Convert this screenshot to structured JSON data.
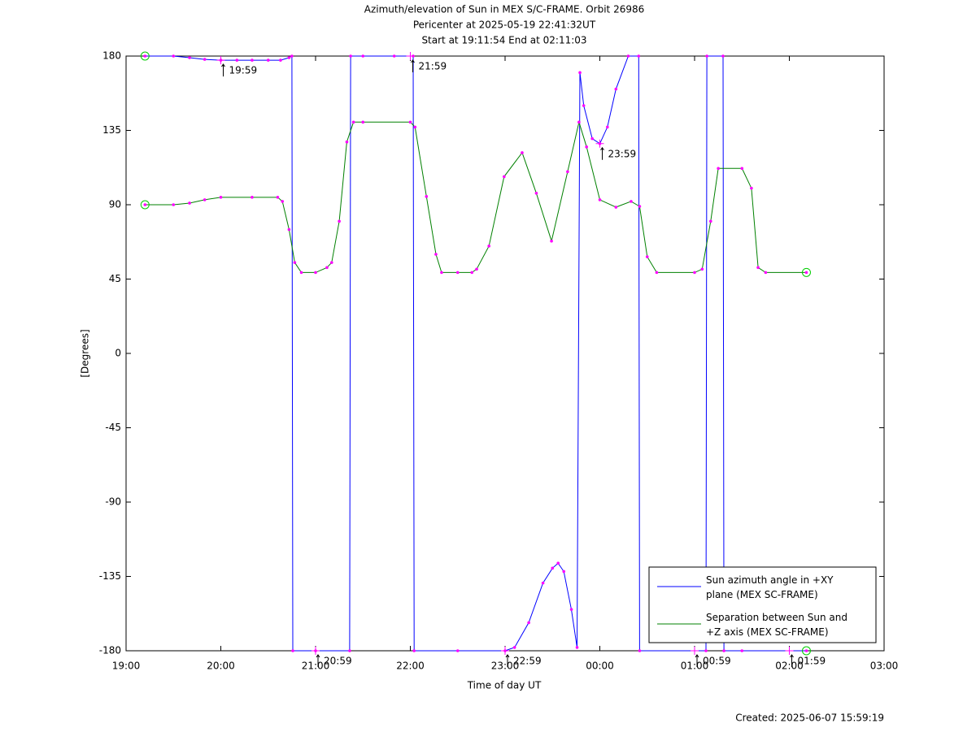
{
  "chart_data": {
    "type": "line",
    "title": [
      "Azimuth/elevation of Sun in MEX S/C-FRAME.  Orbit 26986",
      "Pericenter at 2025-05-19 22:41:32UT",
      "Start at 19:11:54 End at 02:11:03"
    ],
    "x_label": "Time of day UT",
    "y_label": "[Degrees]",
    "footer": "Created: 2025-06-07 15:59:19",
    "xlim": [
      19,
      27
    ],
    "xticks": [
      {
        "value": 19,
        "label": "19:00"
      },
      {
        "value": 20,
        "label": "20:00"
      },
      {
        "value": 21,
        "label": "21:00"
      },
      {
        "value": 22,
        "label": "22:00"
      },
      {
        "value": 23,
        "label": "23:00"
      },
      {
        "value": 24,
        "label": "00:00"
      },
      {
        "value": 25,
        "label": "01:00"
      },
      {
        "value": 26,
        "label": "02:00"
      },
      {
        "value": 27,
        "label": "03:00"
      }
    ],
    "ylim": [
      -180,
      180
    ],
    "yticks": [
      180,
      135,
      90,
      45,
      0,
      -45,
      -90,
      -135,
      -180
    ],
    "grid": false,
    "legend": "lower right",
    "marker_color": "#ff00ff",
    "series": [
      {
        "name": "Sun azimuth angle in +XY plane (MEX SC-FRAME)",
        "color": "#0000ff",
        "x": [
          19.2,
          19.5,
          19.67,
          19.83,
          20.0,
          20.17,
          20.33,
          20.5,
          20.63,
          20.72,
          20.75,
          20.76,
          21.0,
          21.36,
          21.37,
          21.5,
          21.83,
          22.03,
          22.04,
          22.5,
          23.0,
          23.1,
          23.25,
          23.4,
          23.5,
          23.56,
          23.62,
          23.7,
          23.76,
          23.79,
          23.83,
          23.92,
          24.0,
          24.08,
          24.17,
          24.3,
          24.41,
          24.42,
          25.12,
          25.13,
          25.3,
          25.31,
          25.5,
          26.18
        ],
        "values": [
          180,
          180,
          179,
          178,
          177.5,
          177.5,
          177.5,
          177.5,
          177.5,
          179,
          180,
          -180,
          -180,
          -180,
          180,
          180,
          180,
          180,
          -180,
          -180,
          -180,
          -178,
          -163,
          -139,
          -130,
          -127,
          -132,
          -155,
          -178,
          170,
          150,
          130,
          127,
          137,
          160,
          180,
          180,
          -180,
          -180,
          180,
          180,
          -180,
          -180,
          -180
        ]
      },
      {
        "name": "Separation between Sun and +Z axis (MEX SC-FRAME)",
        "color": "#008000",
        "x": [
          19.2,
          19.5,
          19.67,
          19.83,
          20.0,
          20.33,
          20.6,
          20.65,
          20.72,
          20.78,
          20.85,
          21.0,
          21.12,
          21.17,
          21.25,
          21.33,
          21.4,
          21.5,
          22.0,
          22.05,
          22.17,
          22.27,
          22.33,
          22.5,
          22.65,
          22.7,
          22.83,
          22.99,
          23.18,
          23.33,
          23.49,
          23.66,
          23.78,
          23.86,
          24.0,
          24.17,
          24.33,
          24.42,
          24.5,
          24.6,
          25.0,
          25.08,
          25.17,
          25.25,
          25.5,
          25.6,
          25.67,
          25.75,
          26.18
        ],
        "values": [
          90,
          90,
          91,
          93,
          94.5,
          94.5,
          94.5,
          92,
          75,
          55,
          49,
          49,
          52,
          55,
          80,
          128,
          140,
          140,
          140,
          137,
          95,
          60,
          49,
          49,
          49,
          51,
          65,
          107,
          121.5,
          97,
          68,
          110,
          140,
          125,
          93,
          88.5,
          92,
          89,
          58.5,
          49,
          49,
          51,
          80,
          112,
          112,
          100,
          52,
          49,
          49
        ]
      }
    ],
    "annotations": [
      {
        "text": "19:59",
        "x": 20.0,
        "y": 177.5
      },
      {
        "text": "20:59",
        "x": 21.0,
        "y": -180
      },
      {
        "text": "21:59",
        "x": 22.0,
        "y": 180
      },
      {
        "text": "22:59",
        "x": 23.0,
        "y": -180
      },
      {
        "text": "23:59",
        "x": 24.0,
        "y": 127
      },
      {
        "text": "00:59",
        "x": 25.0,
        "y": -180
      },
      {
        "text": "01:59",
        "x": 26.0,
        "y": -180
      }
    ]
  }
}
